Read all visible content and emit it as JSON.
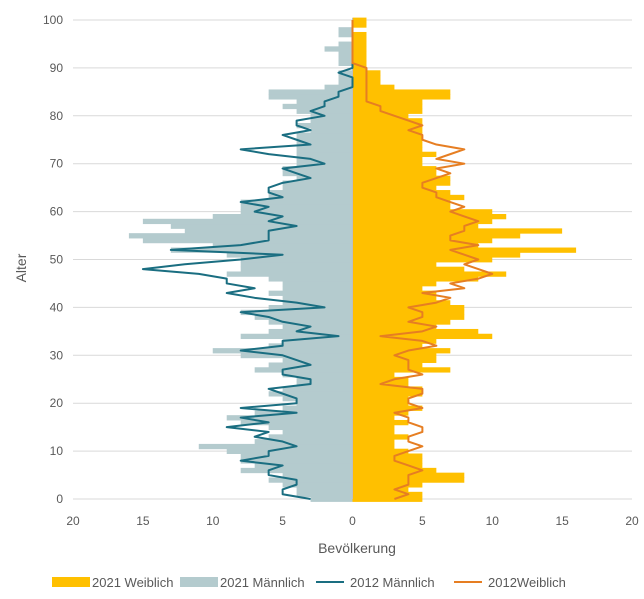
{
  "chart_data": {
    "type": "population-pyramid",
    "xlabel": "Bevölkerung",
    "ylabel": "Alter",
    "xlim": [
      -20,
      20
    ],
    "ylim": [
      0,
      100
    ],
    "x_ticks": [
      {
        "value": -20,
        "label": "20"
      },
      {
        "value": -15,
        "label": "15"
      },
      {
        "value": -10,
        "label": "10"
      },
      {
        "value": -5,
        "label": "5"
      },
      {
        "value": 0,
        "label": "0"
      },
      {
        "value": 5,
        "label": "5"
      },
      {
        "value": 10,
        "label": "10"
      },
      {
        "value": 15,
        "label": "15"
      },
      {
        "value": 20,
        "label": "20"
      }
    ],
    "y_ticks": [
      0,
      10,
      20,
      30,
      40,
      50,
      60,
      70,
      80,
      90,
      100
    ],
    "grid": "horizontal",
    "legend_position": "bottom",
    "age": [
      0,
      1,
      2,
      3,
      4,
      5,
      6,
      7,
      8,
      9,
      10,
      11,
      12,
      13,
      14,
      15,
      16,
      17,
      18,
      19,
      20,
      21,
      22,
      23,
      24,
      25,
      26,
      27,
      28,
      29,
      30,
      31,
      32,
      33,
      34,
      35,
      36,
      37,
      38,
      39,
      40,
      41,
      42,
      43,
      44,
      45,
      46,
      47,
      48,
      49,
      50,
      51,
      52,
      53,
      54,
      55,
      56,
      57,
      58,
      59,
      60,
      61,
      62,
      63,
      64,
      65,
      66,
      67,
      68,
      69,
      70,
      71,
      72,
      73,
      74,
      75,
      76,
      77,
      78,
      79,
      80,
      81,
      82,
      83,
      84,
      85,
      86,
      87,
      88,
      89,
      90,
      91,
      92,
      93,
      94,
      95,
      96,
      97,
      98,
      99,
      100
    ],
    "series": [
      {
        "name": "2021 Weiblich",
        "kind": "bar",
        "color": "#FFC000",
        "values": [
          5,
          5,
          4,
          5,
          8,
          8,
          6,
          5,
          5,
          5,
          4,
          3,
          3,
          4,
          3,
          3,
          4,
          3,
          4,
          5,
          4,
          4,
          5,
          5,
          4,
          4,
          3,
          7,
          5,
          6,
          6,
          7,
          5,
          6,
          10,
          9,
          6,
          7,
          8,
          8,
          8,
          7,
          6,
          6,
          5,
          6,
          9,
          11,
          8,
          6,
          10,
          12,
          16,
          9,
          10,
          12,
          15,
          9,
          10,
          11,
          10,
          7,
          7,
          8,
          7,
          6,
          7,
          7,
          6,
          6,
          5,
          5,
          6,
          5,
          5,
          5,
          5,
          5,
          5,
          5,
          4,
          5,
          5,
          5,
          7,
          7,
          3,
          2,
          2,
          2,
          1,
          1,
          1,
          1,
          1,
          1,
          1,
          1,
          0,
          1,
          1
        ]
      },
      {
        "name": "2021 Männlich",
        "kind": "bar",
        "color": "#B4CBCE",
        "values": [
          3,
          4,
          4,
          5,
          6,
          5,
          8,
          7,
          8,
          8,
          9,
          11,
          7,
          6,
          5,
          6,
          8,
          9,
          7,
          5,
          4,
          5,
          6,
          5,
          4,
          4,
          5,
          7,
          6,
          5,
          8,
          10,
          6,
          5,
          8,
          6,
          5,
          6,
          7,
          8,
          6,
          5,
          5,
          6,
          5,
          5,
          6,
          9,
          8,
          8,
          8,
          9,
          13,
          10,
          15,
          16,
          12,
          13,
          15,
          10,
          8,
          8,
          8,
          6,
          6,
          5,
          5,
          4,
          5,
          5,
          4,
          4,
          4,
          4,
          4,
          4,
          4,
          3,
          4,
          3,
          3,
          4,
          5,
          4,
          6,
          6,
          2,
          1,
          1,
          1,
          0,
          1,
          1,
          1,
          2,
          1,
          0,
          1,
          1,
          0,
          0
        ]
      },
      {
        "name": "2012 Männlich",
        "kind": "line",
        "color": "#1A6E81",
        "values": [
          3,
          5,
          5,
          4,
          4,
          6,
          6,
          5,
          8,
          6,
          6,
          4,
          5,
          7,
          6,
          9,
          6,
          8,
          4,
          8,
          4,
          4,
          5,
          6,
          3,
          3,
          5,
          5,
          3,
          4,
          5,
          8,
          5,
          5,
          1,
          4,
          3,
          5,
          6,
          8,
          2,
          4,
          7,
          9,
          7,
          9,
          9,
          11,
          15,
          12,
          8,
          5,
          13,
          8,
          6,
          6,
          6,
          4,
          6,
          5,
          7,
          6,
          8,
          5,
          6,
          6,
          5,
          3,
          4,
          5,
          2,
          3,
          6,
          8,
          3,
          4,
          5,
          3,
          4,
          4,
          2,
          3,
          2,
          2,
          1,
          1,
          0,
          0,
          0,
          1,
          0,
          0,
          0,
          0,
          0,
          0,
          0,
          0,
          0,
          0,
          0
        ]
      },
      {
        "name": "2012Weiblich",
        "kind": "line",
        "color": "#E67E22",
        "values": [
          3,
          4,
          3,
          4,
          4,
          4,
          5,
          4,
          3,
          3,
          4,
          5,
          4,
          4,
          5,
          5,
          4,
          4,
          3,
          5,
          4,
          4,
          5,
          5,
          2,
          3,
          5,
          4,
          4,
          4,
          3,
          4,
          6,
          5,
          2,
          5,
          6,
          4,
          5,
          5,
          4,
          6,
          7,
          5,
          8,
          7,
          9,
          10,
          9,
          8,
          9,
          8,
          7,
          9,
          7,
          7,
          8,
          8,
          9,
          8,
          7,
          8,
          7,
          6,
          6,
          5,
          5,
          6,
          7,
          6,
          8,
          6,
          7,
          8,
          6,
          5,
          5,
          4,
          5,
          4,
          3,
          2,
          2,
          1,
          1,
          1,
          1,
          1,
          1,
          1,
          1,
          0,
          0,
          0,
          0,
          0,
          0,
          0,
          0,
          0,
          0
        ]
      }
    ]
  }
}
